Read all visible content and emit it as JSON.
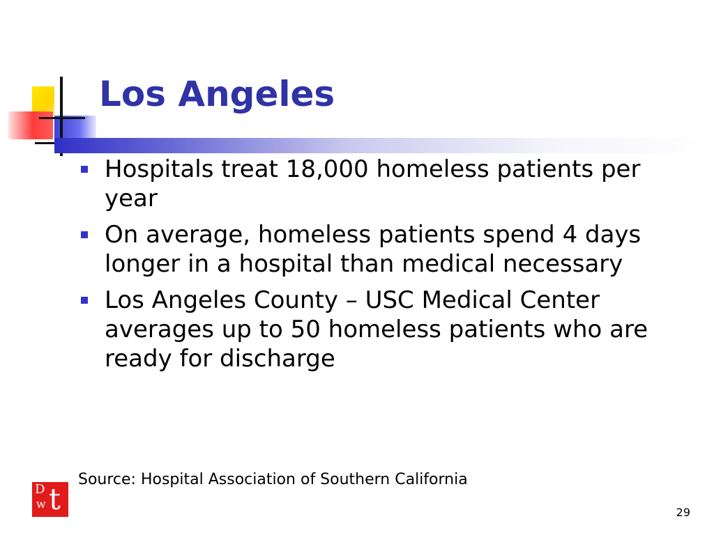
{
  "slide": {
    "title": "Los Angeles",
    "bullets": [
      "Hospitals treat 18,000 homeless patients per year",
      "On average, homeless patients spend 4 days longer in a hospital than medical necessary",
      "Los Angeles County – USC Medical Center averages up to 50 homeless patients who are ready for discharge"
    ],
    "source": "Source: Hospital Association of Southern California",
    "page_number": "29",
    "logo": {
      "letters": [
        "D",
        "w",
        "t"
      ]
    }
  },
  "colors": {
    "title": "#2f33a5",
    "bullet_marker": "#3333cc",
    "logo_background": "#e01b1b",
    "deco_yellow": "#ffd400",
    "deco_red": "#ff3b3b",
    "deco_blue": "#3d43d8"
  }
}
